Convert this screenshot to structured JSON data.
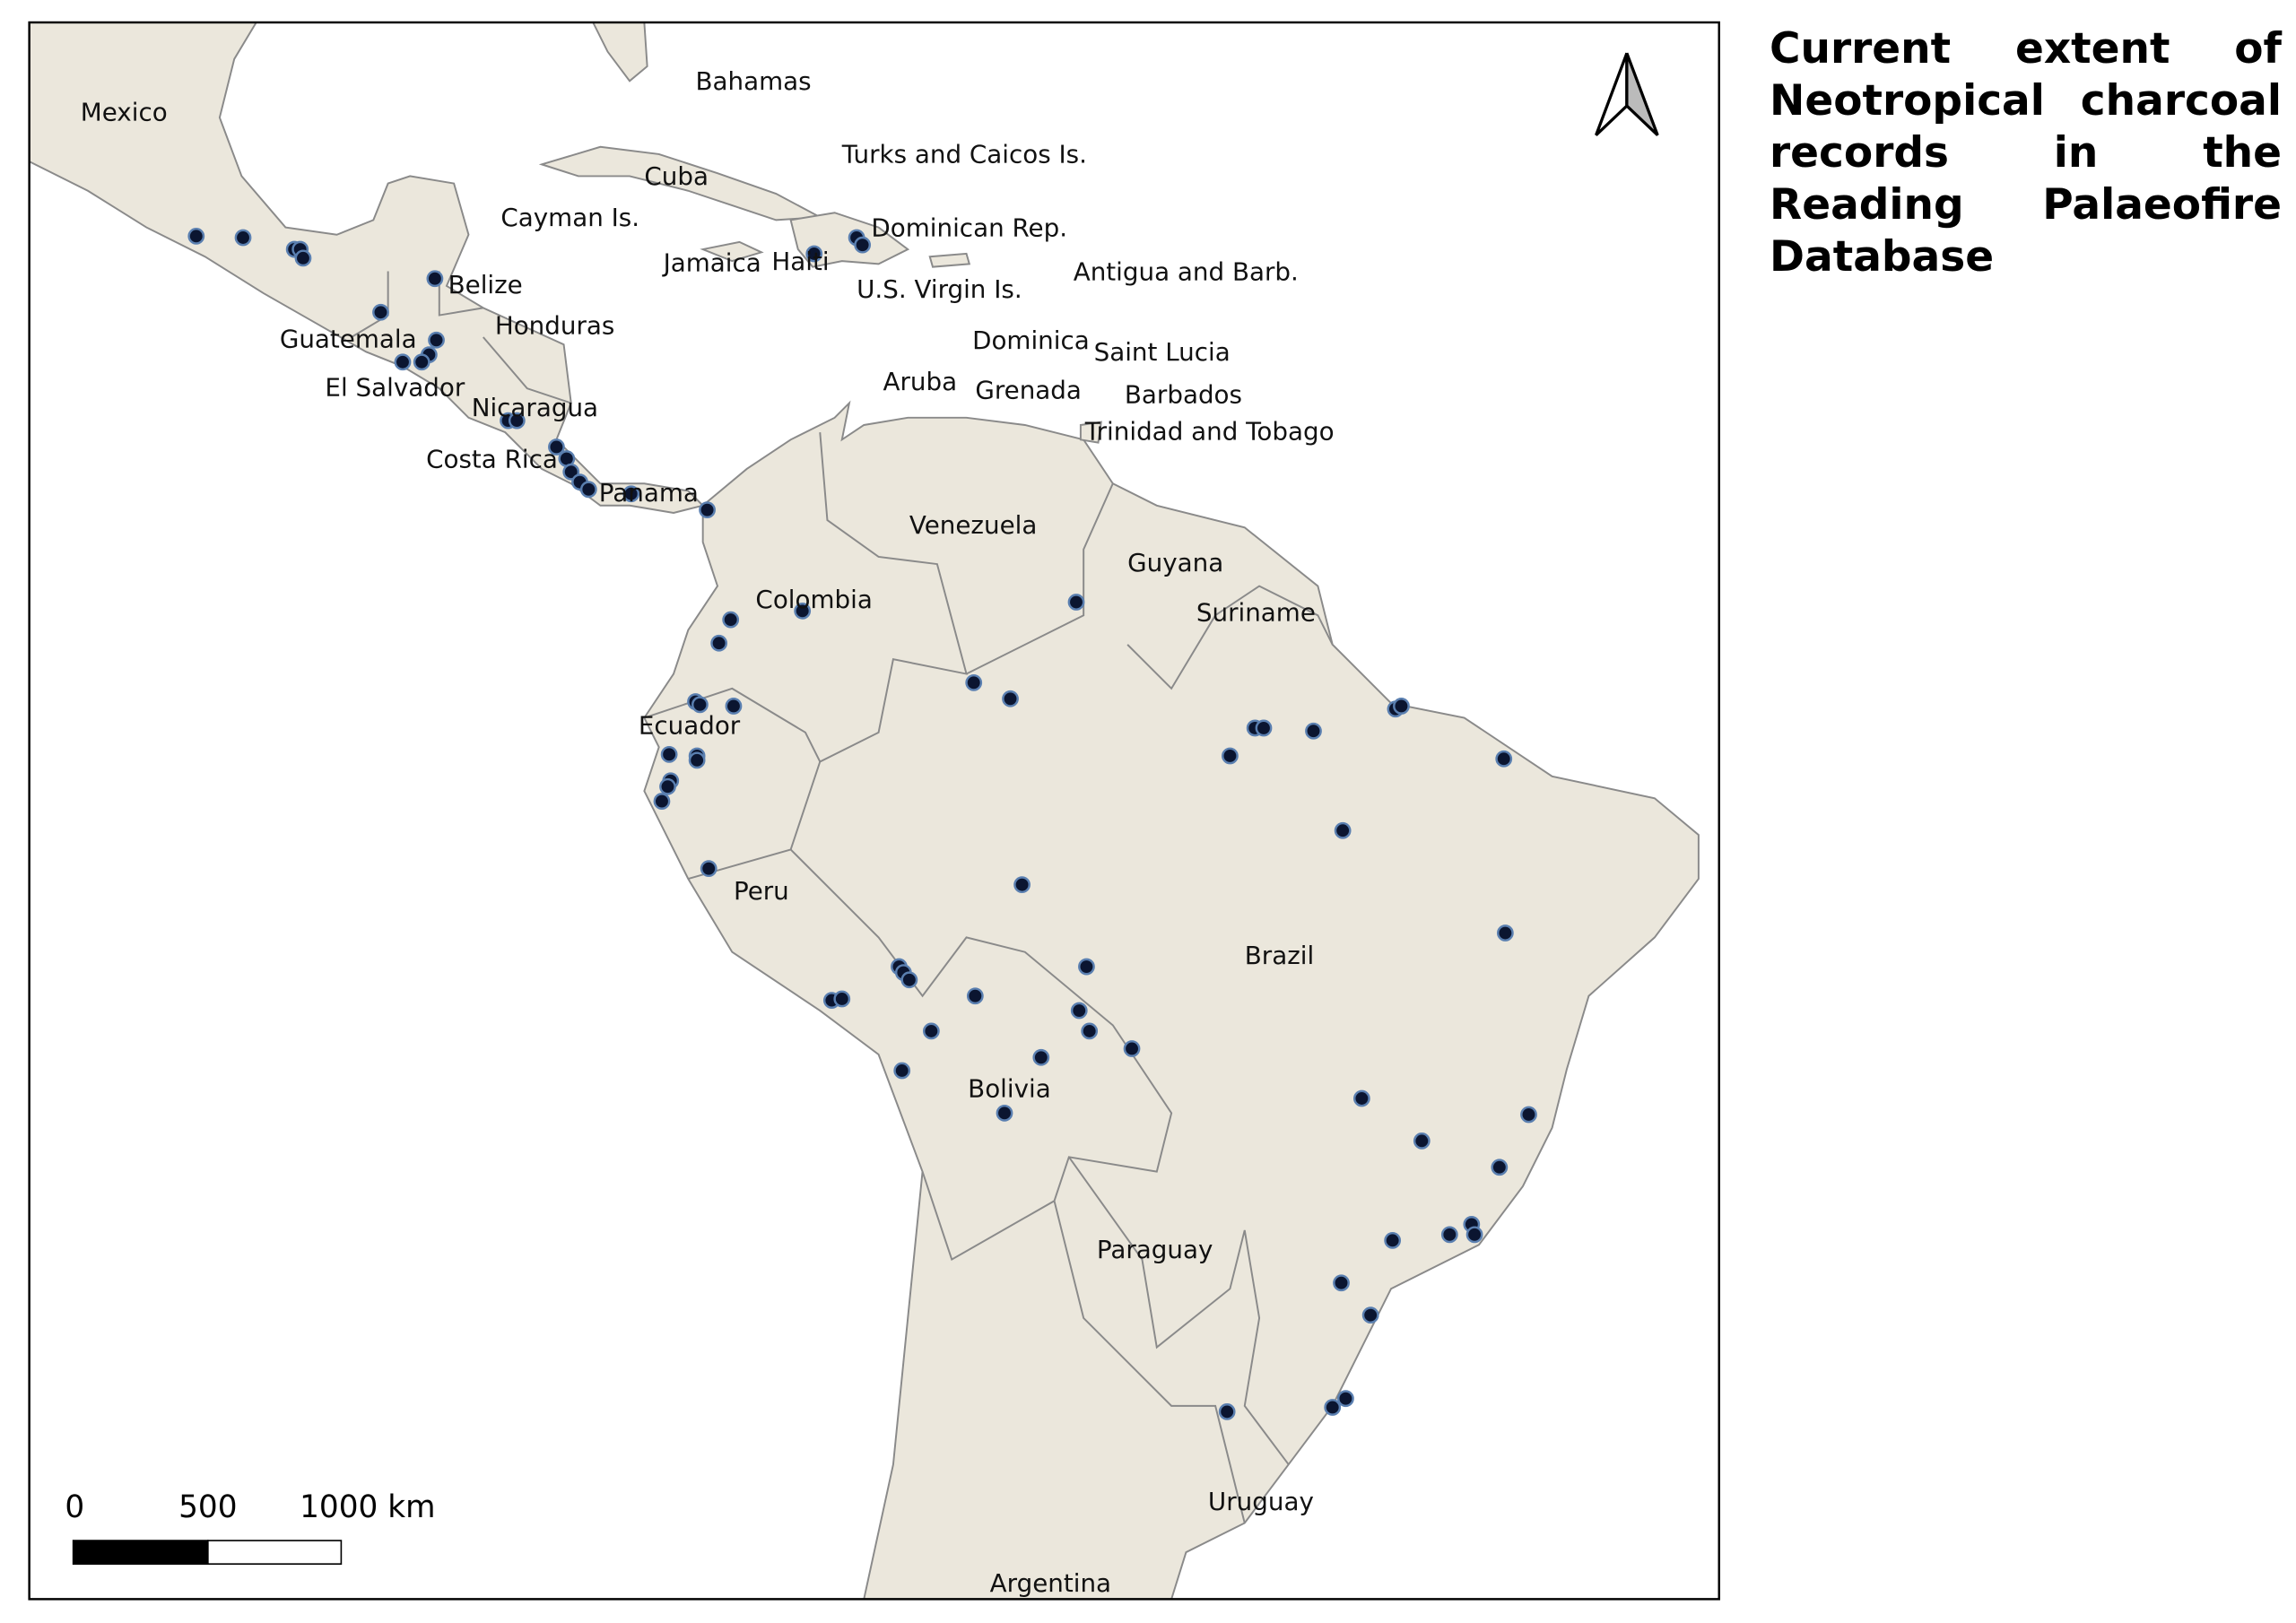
{
  "title": "Current extent of Neotropical charcoal records in the Reading Palaeofire Database",
  "map": {
    "labels": [
      "Mexico",
      "Bahamas",
      "Turks and Caicos Is.",
      "Cuba",
      "Cayman Is.",
      "Dominican Rep.",
      "Jamaica",
      "Haiti",
      "U.S. Virgin Is.",
      "Antigua and Barb.",
      "Belize",
      "Honduras",
      "Guatemala",
      "Dominica",
      "Saint Lucia",
      "El Salvador",
      "Aruba",
      "Grenada",
      "Barbados",
      "Nicaragua",
      "Trinidad and Tobago",
      "Costa Rica",
      "Panama",
      "Venezuela",
      "Guyana",
      "Colombia",
      "Suriname",
      "Ecuador",
      "Peru",
      "Brazil",
      "Bolivia",
      "Paraguay",
      "Uruguay",
      "Argentina"
    ]
  },
  "scale_bar": {
    "labels": [
      "0",
      "500",
      "1000 km"
    ]
  }
}
